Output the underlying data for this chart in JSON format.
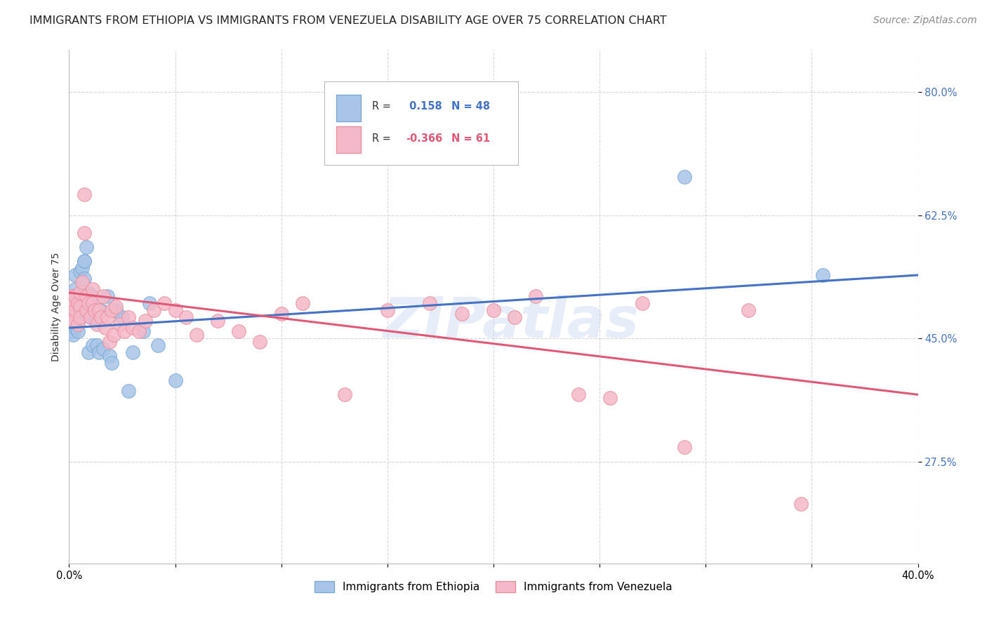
{
  "title": "IMMIGRANTS FROM ETHIOPIA VS IMMIGRANTS FROM VENEZUELA DISABILITY AGE OVER 75 CORRELATION CHART",
  "source": "Source: ZipAtlas.com",
  "ylabel": "Disability Age Over 75",
  "x_min": 0.0,
  "x_max": 0.4,
  "y_min": 0.13,
  "y_max": 0.86,
  "x_ticks": [
    0.0,
    0.05,
    0.1,
    0.15,
    0.2,
    0.25,
    0.3,
    0.35,
    0.4
  ],
  "x_tick_labels": [
    "0.0%",
    "",
    "",
    "",
    "",
    "",
    "",
    "",
    "40.0%"
  ],
  "y_ticks": [
    0.275,
    0.45,
    0.625,
    0.8
  ],
  "y_tick_labels": [
    "27.5%",
    "45.0%",
    "62.5%",
    "80.0%"
  ],
  "ethiopia_color": "#a8c4e8",
  "venezuela_color": "#f5b8c8",
  "ethiopia_edge_color": "#7aaad4",
  "venezuela_edge_color": "#e8909f",
  "ethiopia_line_color": "#4472c4",
  "venezuela_line_color": "#e05878",
  "R_ethiopia": 0.158,
  "N_ethiopia": 48,
  "R_venezuela": -0.366,
  "N_venezuela": 61,
  "watermark": "ZIPatlas",
  "ethiopia_x": [
    0.001,
    0.001,
    0.001,
    0.002,
    0.002,
    0.002,
    0.002,
    0.003,
    0.003,
    0.003,
    0.003,
    0.004,
    0.004,
    0.004,
    0.005,
    0.005,
    0.005,
    0.006,
    0.006,
    0.007,
    0.007,
    0.007,
    0.008,
    0.008,
    0.009,
    0.009,
    0.01,
    0.01,
    0.011,
    0.011,
    0.012,
    0.013,
    0.014,
    0.015,
    0.016,
    0.018,
    0.019,
    0.02,
    0.022,
    0.025,
    0.028,
    0.03,
    0.035,
    0.038,
    0.042,
    0.05,
    0.29,
    0.355
  ],
  "ethiopia_y": [
    0.49,
    0.475,
    0.46,
    0.5,
    0.48,
    0.51,
    0.455,
    0.495,
    0.465,
    0.52,
    0.54,
    0.488,
    0.46,
    0.505,
    0.51,
    0.49,
    0.545,
    0.55,
    0.485,
    0.56,
    0.535,
    0.56,
    0.58,
    0.49,
    0.515,
    0.43,
    0.5,
    0.48,
    0.51,
    0.44,
    0.48,
    0.44,
    0.43,
    0.49,
    0.435,
    0.51,
    0.425,
    0.415,
    0.49,
    0.48,
    0.375,
    0.43,
    0.46,
    0.5,
    0.44,
    0.39,
    0.68,
    0.54
  ],
  "venezuela_x": [
    0.001,
    0.001,
    0.001,
    0.002,
    0.002,
    0.003,
    0.003,
    0.004,
    0.004,
    0.005,
    0.005,
    0.005,
    0.006,
    0.007,
    0.007,
    0.008,
    0.008,
    0.009,
    0.01,
    0.011,
    0.011,
    0.012,
    0.013,
    0.014,
    0.015,
    0.016,
    0.017,
    0.018,
    0.019,
    0.02,
    0.021,
    0.022,
    0.024,
    0.026,
    0.028,
    0.03,
    0.033,
    0.036,
    0.04,
    0.045,
    0.05,
    0.055,
    0.06,
    0.07,
    0.08,
    0.09,
    0.1,
    0.11,
    0.13,
    0.15,
    0.17,
    0.185,
    0.2,
    0.21,
    0.22,
    0.24,
    0.255,
    0.27,
    0.29,
    0.32,
    0.345
  ],
  "venezuela_y": [
    0.5,
    0.51,
    0.48,
    0.5,
    0.475,
    0.51,
    0.49,
    0.5,
    0.47,
    0.515,
    0.495,
    0.48,
    0.53,
    0.655,
    0.6,
    0.49,
    0.51,
    0.5,
    0.48,
    0.52,
    0.5,
    0.49,
    0.47,
    0.49,
    0.48,
    0.51,
    0.465,
    0.48,
    0.445,
    0.49,
    0.455,
    0.495,
    0.47,
    0.46,
    0.48,
    0.465,
    0.46,
    0.475,
    0.49,
    0.5,
    0.49,
    0.48,
    0.455,
    0.475,
    0.46,
    0.445,
    0.485,
    0.5,
    0.37,
    0.49,
    0.5,
    0.485,
    0.49,
    0.48,
    0.51,
    0.37,
    0.365,
    0.5,
    0.295,
    0.49,
    0.215
  ],
  "background_color": "#ffffff",
  "grid_color": "#d8d8d8",
  "title_fontsize": 11.5,
  "axis_fontsize": 10,
  "tick_fontsize": 10.5,
  "source_fontsize": 10
}
